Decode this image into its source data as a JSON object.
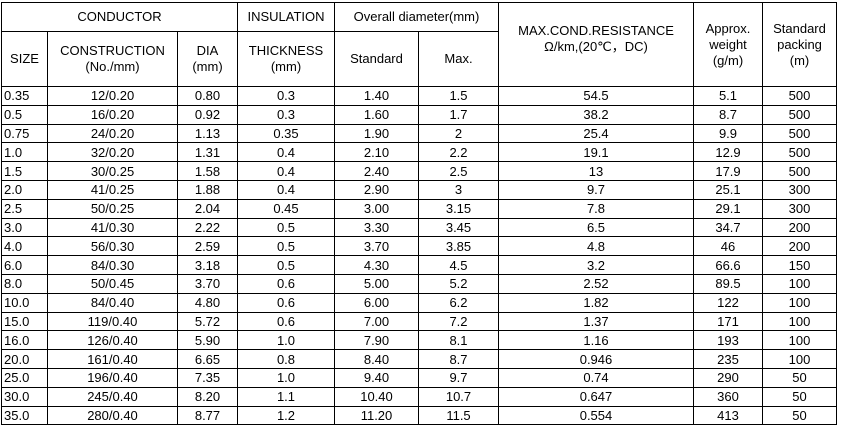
{
  "header": {
    "conductor": "CONDUCTOR",
    "insulation": "INSULATION",
    "overall_diameter": "Overall diameter(mm)",
    "resistance": [
      "MAX.COND.RESISTANCE",
      "Ω/km,(20℃，DC)"
    ],
    "weight": [
      "Approx.",
      "weight",
      "(g/m)"
    ],
    "packing": [
      "Standard",
      "packing",
      "(m)"
    ],
    "size": "SIZE",
    "construction": [
      "CONSTRUCTION",
      "(No./mm)"
    ],
    "dia": [
      "DIA",
      "(mm)"
    ],
    "thickness": [
      "THICKNESS",
      "(mm)"
    ],
    "standard": "Standard",
    "max": "Max."
  },
  "table": {
    "rows": [
      [
        "0.35",
        "12/0.20",
        "0.80",
        "0.3",
        "1.40",
        "1.5",
        "54.5",
        "5.1",
        "500"
      ],
      [
        "0.5",
        "16/0.20",
        "0.92",
        "0.3",
        "1.60",
        "1.7",
        "38.2",
        "8.7",
        "500"
      ],
      [
        "0.75",
        "24/0.20",
        "1.13",
        "0.35",
        "1.90",
        "2",
        "25.4",
        "9.9",
        "500"
      ],
      [
        "1.0",
        "32/0.20",
        "1.31",
        "0.4",
        "2.10",
        "2.2",
        "19.1",
        "12.9",
        "500"
      ],
      [
        "1.5",
        "30/0.25",
        "1.58",
        "0.4",
        "2.40",
        "2.5",
        "13",
        "17.9",
        "500"
      ],
      [
        "2.0",
        "41/0.25",
        "1.88",
        "0.4",
        "2.90",
        "3",
        "9.7",
        "25.1",
        "300"
      ],
      [
        "2.5",
        "50/0.25",
        "2.04",
        "0.45",
        "3.00",
        "3.15",
        "7.8",
        "29.1",
        "300"
      ],
      [
        "3.0",
        "41/0.30",
        "2.22",
        "0.5",
        "3.30",
        "3.45",
        "6.5",
        "34.7",
        "200"
      ],
      [
        "4.0",
        "56/0.30",
        "2.59",
        "0.5",
        "3.70",
        "3.85",
        "4.8",
        "46",
        "200"
      ],
      [
        "6.0",
        "84/0.30",
        "3.18",
        "0.5",
        "4.30",
        "4.5",
        "3.2",
        "66.6",
        "150"
      ],
      [
        "8.0",
        "50/0.45",
        "3.70",
        "0.6",
        "5.00",
        "5.2",
        "2.52",
        "89.5",
        "100"
      ],
      [
        "10.0",
        "84/0.40",
        "4.80",
        "0.6",
        "6.00",
        "6.2",
        "1.82",
        "122",
        "100"
      ],
      [
        "15.0",
        "119/0.40",
        "5.72",
        "0.6",
        "7.00",
        "7.2",
        "1.37",
        "171",
        "100"
      ],
      [
        "16.0",
        "126/0.40",
        "5.90",
        "1.0",
        "7.90",
        "8.1",
        "1.16",
        "193",
        "100"
      ],
      [
        "20.0",
        "161/0.40",
        "6.65",
        "0.8",
        "8.40",
        "8.7",
        "0.946",
        "235",
        "100"
      ],
      [
        "25.0",
        "196/0.40",
        "7.35",
        "1.0",
        "9.40",
        "9.7",
        "0.74",
        "290",
        "50"
      ],
      [
        "30.0",
        "245/0.40",
        "8.20",
        "1.1",
        "10.40",
        "10.7",
        "0.647",
        "360",
        "50"
      ],
      [
        "35.0",
        "280/0.40",
        "8.77",
        "1.2",
        "11.20",
        "11.5",
        "0.554",
        "413",
        "50"
      ]
    ]
  }
}
